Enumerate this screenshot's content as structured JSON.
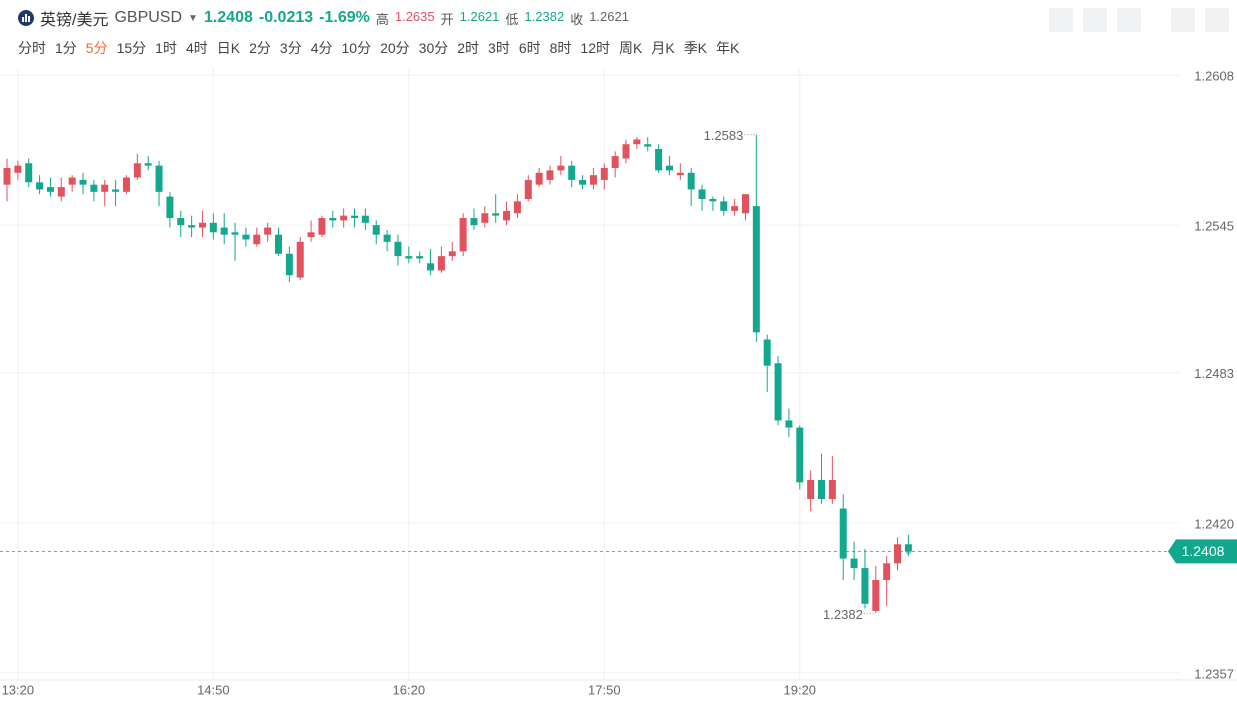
{
  "header": {
    "title": "英镑/美元",
    "symbol": "GBPUSD",
    "price": "1.2408",
    "change": "-0.0213",
    "change_pct": "-1.69%",
    "stats": [
      {
        "label": "高",
        "value": "1.2635",
        "color": "#e0525e"
      },
      {
        "label": "开",
        "value": "1.2621",
        "color": "#13a88e"
      },
      {
        "label": "低",
        "value": "1.2382",
        "color": "#13a88e"
      },
      {
        "label": "收",
        "value": "1.2621",
        "color": "#666666"
      }
    ]
  },
  "periods": [
    "分时",
    "1分",
    "5分",
    "15分",
    "1时",
    "4时",
    "日K",
    "2分",
    "3分",
    "4分",
    "10分",
    "20分",
    "30分",
    "2时",
    "3时",
    "6时",
    "8时",
    "12时",
    "周K",
    "月K",
    "季K",
    "年K"
  ],
  "active_period": 2,
  "chart_data": {
    "type": "candlestick",
    "categories": [
      null,
      "13:20",
      null,
      null,
      null,
      null,
      null,
      null,
      null,
      null,
      null,
      null,
      null,
      null,
      null,
      null,
      null,
      null,
      null,
      "14:50",
      null,
      null,
      null,
      null,
      null,
      null,
      null,
      null,
      null,
      null,
      null,
      null,
      null,
      null,
      null,
      null,
      null,
      "16:20",
      null,
      null,
      null,
      null,
      null,
      null,
      null,
      null,
      null,
      null,
      null,
      null,
      null,
      null,
      null,
      null,
      null,
      "17:50",
      null,
      null,
      null,
      null,
      null,
      null,
      null,
      null,
      null,
      null,
      null,
      null,
      null,
      null,
      null,
      null,
      null,
      "19:20",
      null,
      null,
      null,
      null,
      null,
      null,
      null,
      null,
      null,
      null
    ],
    "open": [
      1.2562,
      1.2567,
      1.2571,
      1.2563,
      1.2561,
      1.2557,
      1.2562,
      1.2564,
      1.2562,
      1.2559,
      1.256,
      1.2559,
      1.2565,
      1.2571,
      1.257,
      1.2557,
      1.2548,
      1.2545,
      1.2544,
      1.2546,
      1.2544,
      1.2542,
      1.2541,
      1.2537,
      1.2541,
      1.2541,
      1.2533,
      1.2523,
      1.254,
      1.2541,
      1.2548,
      1.2547,
      1.2549,
      1.2549,
      1.2545,
      1.2541,
      1.2538,
      1.2532,
      1.2532,
      1.2529,
      1.2526,
      1.2532,
      1.2534,
      1.2548,
      1.2546,
      1.255,
      1.2547,
      1.255,
      1.2556,
      1.2562,
      1.2564,
      1.2568,
      1.257,
      1.2564,
      1.2562,
      1.2564,
      1.2569,
      1.2573,
      1.2579,
      1.2579,
      1.2577,
      1.257,
      1.2566,
      1.2567,
      1.256,
      1.2556,
      1.2555,
      1.2551,
      1.255,
      1.2553,
      1.2497,
      1.2487,
      1.2463,
      1.246,
      1.243,
      1.2438,
      1.243,
      1.2426,
      1.2405,
      1.2401,
      1.2383,
      1.2396,
      1.2403,
      1.2411
    ],
    "high": [
      1.2573,
      1.2572,
      1.2573,
      1.2566,
      1.2565,
      1.2565,
      1.2566,
      1.2567,
      1.2564,
      1.2564,
      1.2564,
      1.2566,
      1.2575,
      1.2574,
      1.2572,
      1.2559,
      1.2551,
      1.2549,
      1.2551,
      1.255,
      1.255,
      1.2546,
      1.2544,
      1.2544,
      1.2546,
      1.2544,
      1.2536,
      1.254,
      1.2547,
      1.2549,
      1.2551,
      1.2552,
      1.2552,
      1.2552,
      1.2547,
      1.2543,
      1.2541,
      1.2536,
      1.2534,
      1.2535,
      1.2536,
      1.2538,
      1.255,
      1.2552,
      1.2553,
      1.2558,
      1.2555,
      1.2558,
      1.2566,
      1.2569,
      1.257,
      1.2574,
      1.2572,
      1.2566,
      1.2569,
      1.2571,
      1.2576,
      1.2581,
      1.2582,
      1.2582,
      1.2579,
      1.2574,
      1.2571,
      1.2569,
      1.2562,
      1.2557,
      1.2557,
      1.2556,
      1.2558,
      1.2583,
      1.2499,
      1.249,
      1.2468,
      1.2461,
      1.2442,
      1.2449,
      1.2448,
      1.2432,
      1.2412,
      1.2409,
      1.2402,
      1.2406,
      1.2414,
      1.2415
    ],
    "low": [
      1.2555,
      1.2564,
      1.2561,
      1.2558,
      1.2557,
      1.2555,
      1.2559,
      1.2558,
      1.2555,
      1.2553,
      1.2553,
      1.2558,
      1.2564,
      1.2568,
      1.2553,
      1.2544,
      1.254,
      1.254,
      1.254,
      1.2539,
      1.2537,
      1.253,
      1.2536,
      1.2536,
      1.2538,
      1.2532,
      1.2521,
      1.2522,
      1.2538,
      1.254,
      1.2544,
      1.2544,
      1.2544,
      1.2543,
      1.2537,
      1.2534,
      1.2528,
      1.2529,
      1.2529,
      1.2524,
      1.2525,
      1.253,
      1.2532,
      1.2543,
      1.2544,
      1.2546,
      1.2545,
      1.2548,
      1.2555,
      1.2561,
      1.2562,
      1.2566,
      1.2561,
      1.256,
      1.256,
      1.256,
      1.2565,
      1.2571,
      1.2577,
      1.2576,
      1.2567,
      1.2566,
      1.2564,
      1.2553,
      1.2551,
      1.2551,
      1.2549,
      1.2549,
      1.2547,
      1.2496,
      1.2475,
      1.2461,
      1.2456,
      1.2434,
      1.2425,
      1.2428,
      1.2428,
      1.2396,
      1.2396,
      1.2384,
      1.2382,
      1.2385,
      1.24,
      1.2406
    ],
    "close": [
      1.2569,
      1.257,
      1.2563,
      1.256,
      1.2559,
      1.2561,
      1.2565,
      1.2562,
      1.2559,
      1.2562,
      1.2559,
      1.2565,
      1.2571,
      1.257,
      1.2559,
      1.2548,
      1.2545,
      1.2544,
      1.2546,
      1.2542,
      1.2541,
      1.2541,
      1.2539,
      1.2541,
      1.2544,
      1.2533,
      1.2524,
      1.2538,
      1.2542,
      1.2548,
      1.2547,
      1.2549,
      1.2548,
      1.2546,
      1.2541,
      1.2538,
      1.2532,
      1.2531,
      1.2531,
      1.2526,
      1.2532,
      1.2534,
      1.2548,
      1.2545,
      1.255,
      1.2549,
      1.2551,
      1.2555,
      1.2564,
      1.2567,
      1.2568,
      1.257,
      1.2564,
      1.2562,
      1.2566,
      1.2569,
      1.2574,
      1.2579,
      1.2581,
      1.2578,
      1.2568,
      1.2568,
      1.2567,
      1.256,
      1.2556,
      1.2555,
      1.2551,
      1.2553,
      1.2558,
      1.25,
      1.2486,
      1.2463,
      1.246,
      1.2437,
      1.2438,
      1.243,
      1.2438,
      1.2405,
      1.2401,
      1.2386,
      1.2396,
      1.2403,
      1.2411,
      1.2408
    ],
    "up_color": "#e0525e",
    "down_color": "#13a88e",
    "ylim": [
      1.2354,
      1.2611
    ],
    "yticks": [
      1.2357,
      {
        "value": 1.242,
        "label": "1.2420"
      },
      1.2483,
      1.2545,
      1.2608
    ],
    "grid": true,
    "max_annotation": 1.2583,
    "min_annotation": 1.2382,
    "last_price": 1.2408
  }
}
